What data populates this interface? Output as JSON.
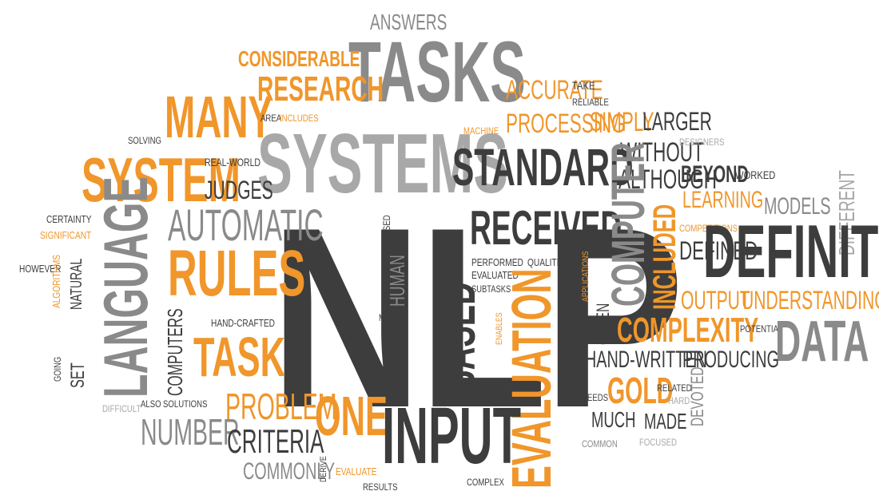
{
  "word_cloud": {
    "colors": {
      "orange": "#f0962a",
      "dark": "#3d3d3d",
      "gray": "#8a8a8a",
      "light": "#a8a8a8"
    },
    "words": [
      {
        "key": "nlp",
        "text": "NLP"
      },
      {
        "key": "tasks",
        "text": "TASKS"
      },
      {
        "key": "systems",
        "text": "SYSTEMS"
      },
      {
        "key": "answers",
        "text": "ANSWERS"
      },
      {
        "key": "considerable",
        "text": "CONSIDERABLE"
      },
      {
        "key": "research",
        "text": "RESEARCH"
      },
      {
        "key": "many",
        "text": "MANY"
      },
      {
        "key": "area",
        "text": "AREA"
      },
      {
        "key": "includes",
        "text": "INCLUDES"
      },
      {
        "key": "solving",
        "text": "SOLVING"
      },
      {
        "key": "system",
        "text": "SYSTEM"
      },
      {
        "key": "real_world",
        "text": "REAL-WORLD"
      },
      {
        "key": "judges",
        "text": "JUDGES"
      },
      {
        "key": "accurate",
        "text": "ACCURATE"
      },
      {
        "key": "take",
        "text": "TAKE"
      },
      {
        "key": "reliable",
        "text": "RELIABLE"
      },
      {
        "key": "machine",
        "text": "MACHINE"
      },
      {
        "key": "processing",
        "text": "PROCESSING"
      },
      {
        "key": "simply",
        "text": "SIMPLY"
      },
      {
        "key": "larger",
        "text": "LARGER"
      },
      {
        "key": "standard",
        "text": "STANDARD"
      },
      {
        "key": "without",
        "text": "WITHOUT"
      },
      {
        "key": "designers",
        "text": "DESIGNERS"
      },
      {
        "key": "although",
        "text": "ALTHOUGH"
      },
      {
        "key": "beyond",
        "text": "BEYOND"
      },
      {
        "key": "worked",
        "text": "WORKED"
      },
      {
        "key": "learning",
        "text": "LEARNING"
      },
      {
        "key": "models",
        "text": "MODELS"
      },
      {
        "key": "different",
        "text": "DIFFERENT"
      },
      {
        "key": "certainty",
        "text": "CERTAINTY"
      },
      {
        "key": "significant",
        "text": "SIGNIFICANT"
      },
      {
        "key": "language",
        "text": "LANGUAGE"
      },
      {
        "key": "automatic",
        "text": "AUTOMATIC"
      },
      {
        "key": "rules",
        "text": "RULES"
      },
      {
        "key": "used",
        "text": "USED"
      },
      {
        "key": "however",
        "text": "HOWEVER"
      },
      {
        "key": "natural",
        "text": "NATURAL"
      },
      {
        "key": "algorithms",
        "text": "ALGORITHMS"
      },
      {
        "key": "going",
        "text": "GOING"
      },
      {
        "key": "set",
        "text": "SET"
      },
      {
        "key": "human",
        "text": "HUMAN"
      },
      {
        "key": "received",
        "text": "RECEIVED"
      },
      {
        "key": "computer",
        "text": "COMPUTER"
      },
      {
        "key": "included",
        "text": "INCLUDED"
      },
      {
        "key": "competitions",
        "text": "COMPETITIONS"
      },
      {
        "key": "defined",
        "text": "DEFINED"
      },
      {
        "key": "definition",
        "text": "DEFINITION"
      },
      {
        "key": "performed",
        "text": "PERFORMED"
      },
      {
        "key": "evaluated",
        "text": "EVALUATED"
      },
      {
        "key": "subtasks",
        "text": "SUBTASKS"
      },
      {
        "key": "qualities",
        "text": "QUALITIES"
      },
      {
        "key": "thus",
        "text": "THUS"
      },
      {
        "key": "applications",
        "text": "APPLICATIONS"
      },
      {
        "key": "output",
        "text": "OUTPUT"
      },
      {
        "key": "understanding",
        "text": "UNDERSTANDING"
      },
      {
        "key": "evaluation",
        "text": "EVALUATION"
      },
      {
        "key": "based",
        "text": "BASED"
      },
      {
        "key": "metric",
        "text": "METRIC"
      },
      {
        "key": "enables",
        "text": "ENABLES"
      },
      {
        "key": "often",
        "text": "OFTEN"
      },
      {
        "key": "complexity",
        "text": "COMPLEXITY"
      },
      {
        "key": "potential",
        "text": "POTENTIAL"
      },
      {
        "key": "data",
        "text": "DATA"
      },
      {
        "key": "hand_crafted",
        "text": "HAND-CRAFTED"
      },
      {
        "key": "computers",
        "text": "COMPUTERS"
      },
      {
        "key": "task",
        "text": "TASK"
      },
      {
        "key": "hand_written",
        "text": "HAND-WRITTEN"
      },
      {
        "key": "producing",
        "text": "PRODUCING"
      },
      {
        "key": "gold",
        "text": "GOLD"
      },
      {
        "key": "related",
        "text": "RELATED"
      },
      {
        "key": "hard",
        "text": "HARD"
      },
      {
        "key": "needs",
        "text": "NEEDS"
      },
      {
        "key": "devoted",
        "text": "DEVOTED"
      },
      {
        "key": "difficult",
        "text": "DIFFICULT"
      },
      {
        "key": "also",
        "text": "ALSO"
      },
      {
        "key": "solutions",
        "text": "SOLUTIONS"
      },
      {
        "key": "problem",
        "text": "PROBLEM"
      },
      {
        "key": "one",
        "text": "ONE"
      },
      {
        "key": "input",
        "text": "INPUT"
      },
      {
        "key": "much",
        "text": "MUCH"
      },
      {
        "key": "made",
        "text": "MADE"
      },
      {
        "key": "number",
        "text": "NUMBER"
      },
      {
        "key": "criteria",
        "text": "CRITERIA"
      },
      {
        "key": "common",
        "text": "COMMON"
      },
      {
        "key": "focused",
        "text": "FOCUSED"
      },
      {
        "key": "commonly",
        "text": "COMMONLY"
      },
      {
        "key": "derive",
        "text": "DERIVE"
      },
      {
        "key": "evaluate",
        "text": "EVALUATE"
      },
      {
        "key": "results",
        "text": "RESULTS"
      },
      {
        "key": "complex",
        "text": "COMPLEX"
      }
    ]
  }
}
